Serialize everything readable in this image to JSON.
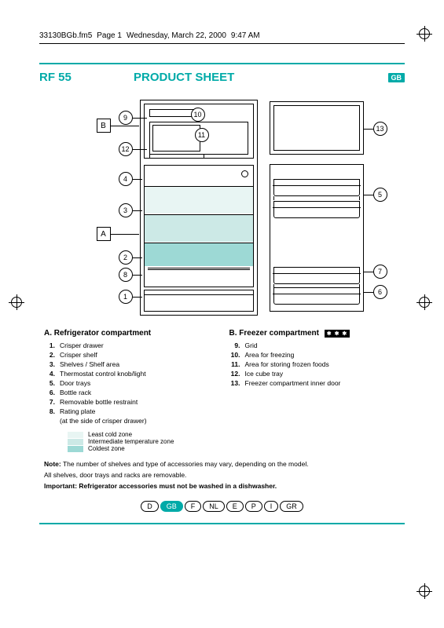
{
  "header": {
    "filename": "33130BGb.fm5",
    "page": "Page 1",
    "date": "Wednesday, March 22, 2000",
    "time": "9:47 AM"
  },
  "title": {
    "model": "RF 55",
    "heading": "PRODUCT SHEET",
    "lang_badge": "GB"
  },
  "colors": {
    "accent": "#00aaa8",
    "coldest": "#9dd9d5",
    "intermediate": "#cce9e6",
    "least_cold": "#e8f5f3"
  },
  "callouts": {
    "A": "A",
    "B": "B",
    "1": "1",
    "2": "2",
    "3": "3",
    "4": "4",
    "5": "5",
    "6": "6",
    "7": "7",
    "8": "8",
    "9": "9",
    "10": "10",
    "11": "11",
    "12": "12",
    "13": "13"
  },
  "sectionA": {
    "heading": "A.    Refrigerator compartment",
    "items": [
      {
        "n": "1.",
        "t": "Crisper drawer"
      },
      {
        "n": "2.",
        "t": "Crisper shelf"
      },
      {
        "n": "3.",
        "t": "Shelves / Shelf area"
      },
      {
        "n": "4.",
        "t": "Thermostat control knob/light"
      },
      {
        "n": "5.",
        "t": "Door trays"
      },
      {
        "n": "6.",
        "t": "Bottle rack"
      },
      {
        "n": "7.",
        "t": "Removable bottle restraint"
      },
      {
        "n": "8.",
        "t": "Rating plate"
      }
    ],
    "item8_sub": "(at the side of crisper drawer)"
  },
  "sectionB": {
    "heading": "B.    Freezer compartment",
    "freeze_symbol": "✱ ✱ ✱",
    "items": [
      {
        "n": "9.",
        "t": "Grid"
      },
      {
        "n": "10.",
        "t": "Area for freezing"
      },
      {
        "n": "11.",
        "t": "Area for storing frozen foods"
      },
      {
        "n": "12.",
        "t": "Ice cube tray"
      },
      {
        "n": "13.",
        "t": "Freezer compartment inner door"
      }
    ]
  },
  "zones": {
    "least": "Least cold zone",
    "intermediate": "Intermediate temperature zone",
    "coldest": "Coldest zone"
  },
  "notes": {
    "note_label": "Note:",
    "note_text": " The number of shelves and type of accessories may vary, depending on the model.",
    "note_text2": "All shelves, door trays and racks are removable.",
    "important": "Important: Refrigerator accessories must not be washed in a dishwasher."
  },
  "langs": [
    "D",
    "GB",
    "F",
    "NL",
    "E",
    "P",
    "I",
    "GR"
  ],
  "active_lang": "GB"
}
